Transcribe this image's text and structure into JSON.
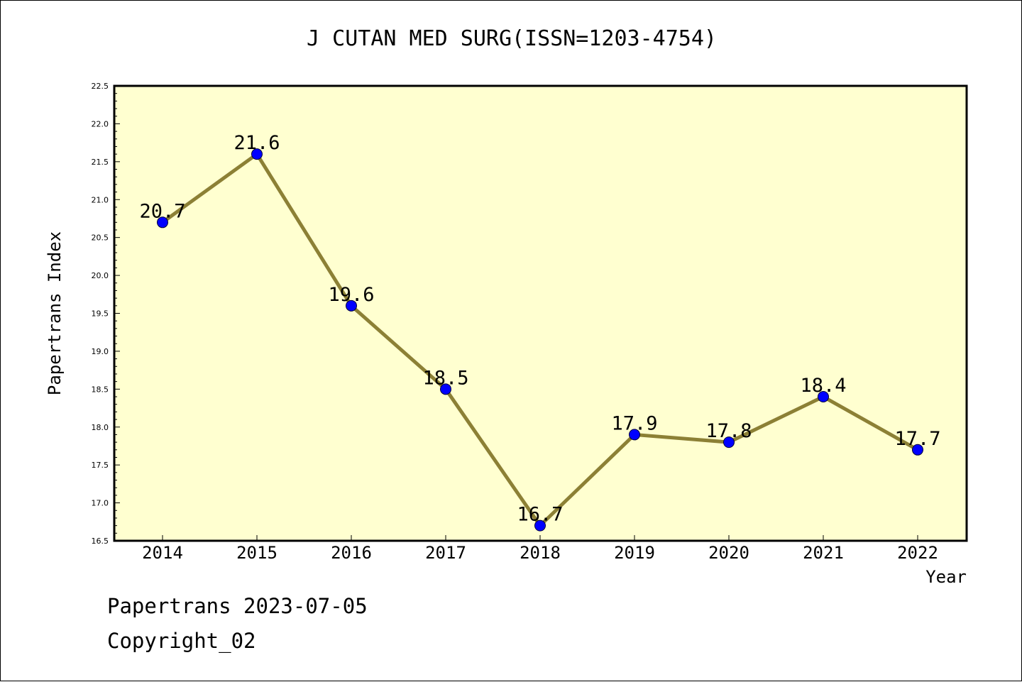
{
  "footer": {
    "date_line": "Papertrans 2023-07-05",
    "copyright_line": "Copyright_02"
  },
  "colors": {
    "plot_background": "#ffffd0",
    "line": "#8c8035",
    "marker": "#0000ff",
    "axis": "#000000"
  },
  "chart_data": {
    "type": "line",
    "title": "J CUTAN MED SURG(ISSN=1203-4754)",
    "xlabel": "Year",
    "ylabel": "Papertrans Index",
    "categories": [
      "2014",
      "2015",
      "2016",
      "2017",
      "2018",
      "2019",
      "2020",
      "2021",
      "2022"
    ],
    "values": [
      20.7,
      21.6,
      19.6,
      18.5,
      16.7,
      17.9,
      17.8,
      18.4,
      17.7
    ],
    "data_labels": [
      "20.7",
      "21.6",
      "19.6",
      "18.5",
      "16.7",
      "17.9",
      "17.8",
      "18.4",
      "17.7"
    ],
    "ylim": [
      16.5,
      22.5
    ],
    "yticks": [
      "16.5",
      "17.0",
      "17.5",
      "18.0",
      "18.5",
      "19.0",
      "19.5",
      "20.0",
      "20.5",
      "21.0",
      "21.5",
      "22.0",
      "22.5"
    ],
    "grid": false,
    "legend": "none"
  }
}
